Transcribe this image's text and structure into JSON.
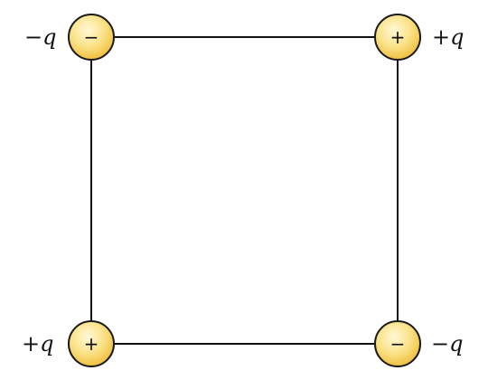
{
  "diagram": {
    "description_title": "Four point charges at the corners of a square",
    "colors": {
      "edge": "#111111",
      "charge_fill_light": "#fff6c4",
      "charge_fill_dark": "#f2c24a",
      "charge_outline": "#1a1a1a"
    },
    "charges": {
      "top_left": {
        "sign": "−",
        "label": "−q"
      },
      "top_right": {
        "sign": "+",
        "label": "+q"
      },
      "bottom_left": {
        "sign": "+",
        "label": "+q"
      },
      "bottom_right": {
        "sign": "−",
        "label": "−q"
      }
    }
  }
}
